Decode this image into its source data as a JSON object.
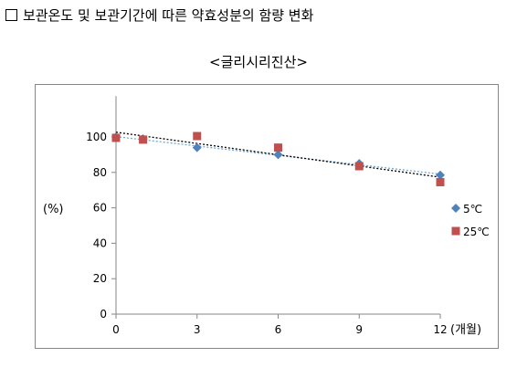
{
  "heading": "보관온도 및 보관기간에 따른 약효성분의 함량 변화",
  "subtitle": "<글리시리진산>",
  "chart_data": {
    "type": "scatter",
    "ylabel": "(%)",
    "xunit": "(개월)",
    "x_ticks": [
      "0",
      "3",
      "6",
      "9",
      "12"
    ],
    "y_ticks": [
      "0",
      "20",
      "40",
      "60",
      "80",
      "100"
    ],
    "xlim": [
      0,
      12
    ],
    "ylim": [
      0,
      120
    ],
    "legend_position": "right",
    "series": [
      {
        "name": "5℃",
        "marker": "diamond",
        "color": "#4F81BD",
        "trend_color": "#6FA8DC",
        "x": [
          0,
          1,
          3,
          6,
          9,
          12
        ],
        "y": [
          100,
          99,
          94,
          90,
          85,
          78.5
        ]
      },
      {
        "name": "25℃",
        "marker": "square",
        "color": "#C0504D",
        "trend_color": "#000000",
        "x": [
          0,
          1,
          3,
          6,
          9,
          12
        ],
        "y": [
          99.5,
          98.5,
          100.5,
          94,
          83.5,
          74.5
        ]
      }
    ]
  }
}
